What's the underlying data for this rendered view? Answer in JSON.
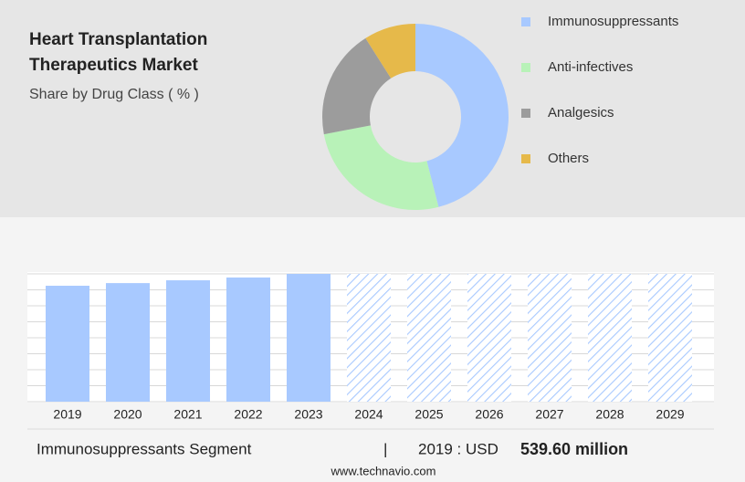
{
  "chart_data": [
    {
      "type": "donut",
      "title": "Heart Transplantation Therapeutics Market",
      "subtitle": "Share by Drug Class ( % )",
      "categories": [
        "Immunosuppressants",
        "Anti-infectives",
        "Analgesics",
        "Others"
      ],
      "values": [
        46,
        26,
        19,
        9
      ],
      "colors": [
        "#a8c9ff",
        "#b8f2b8",
        "#9c9c9c",
        "#e6b94a"
      ]
    },
    {
      "type": "bar",
      "categories": [
        "2019",
        "2020",
        "2021",
        "2022",
        "2023",
        "2024",
        "2025",
        "2026",
        "2027",
        "2028",
        "2029"
      ],
      "values": [
        539.6,
        552,
        565,
        578,
        595,
        null,
        null,
        null,
        null,
        null,
        null
      ],
      "color": "#a8c9ff",
      "ylim": [
        0,
        595
      ],
      "grid": true
    }
  ],
  "footer": {
    "segment": "Immunosuppressants Segment",
    "separator": "|",
    "period": "2019 : USD",
    "value": "539.60 million",
    "source": "www.technavio.com"
  }
}
